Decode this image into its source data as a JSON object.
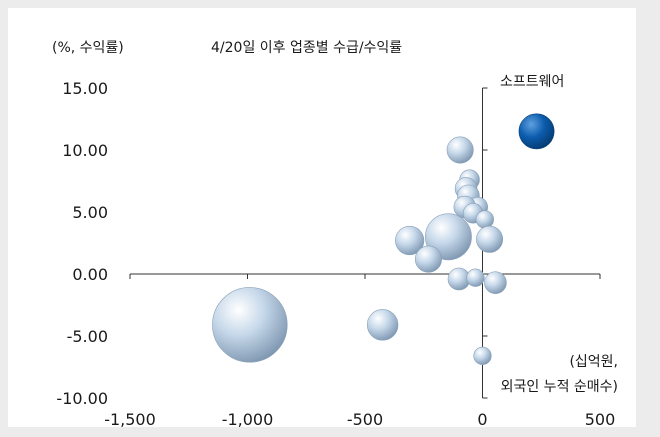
{
  "chart_data": {
    "type": "scatter",
    "title": "4/20일 이후 업종별 수급/수익률",
    "ylabel": "(%, 수익률)",
    "xlabel_line1": "(십억원,",
    "xlabel_line2": "외국인 누적 순매수)",
    "xlim": [
      -1500,
      500
    ],
    "ylim": [
      -10,
      15
    ],
    "x_ticks": [
      -1500,
      -1000,
      -500,
      0,
      500
    ],
    "x_tick_labels": [
      "-1,500",
      "-1,000",
      "-500",
      "0",
      "500"
    ],
    "y_ticks": [
      15,
      10,
      5,
      0,
      -5,
      -10
    ],
    "y_tick_labels": [
      "15.00",
      "10.00",
      "5.00",
      "0.00",
      "-5.00",
      "-10.00"
    ],
    "highlight_label": "소프트웨어",
    "colors": {
      "bubble": "#b9cde0",
      "highlight": "#0b5cad"
    },
    "points": [
      {
        "x": 230,
        "y": 11.5,
        "size": 1.6,
        "highlight": true
      },
      {
        "x": -95,
        "y": 10.0,
        "size": 1.2
      },
      {
        "x": -55,
        "y": 7.6,
        "size": 0.9
      },
      {
        "x": -70,
        "y": 6.9,
        "size": 1.0
      },
      {
        "x": -60,
        "y": 6.3,
        "size": 1.0
      },
      {
        "x": -20,
        "y": 5.4,
        "size": 0.9
      },
      {
        "x": -75,
        "y": 5.4,
        "size": 1.0
      },
      {
        "x": -40,
        "y": 4.9,
        "size": 0.9
      },
      {
        "x": 10,
        "y": 4.4,
        "size": 0.8
      },
      {
        "x": -310,
        "y": 2.7,
        "size": 1.3
      },
      {
        "x": -145,
        "y": 3.0,
        "size": 2.1
      },
      {
        "x": 30,
        "y": 2.8,
        "size": 1.2
      },
      {
        "x": -230,
        "y": 1.2,
        "size": 1.2
      },
      {
        "x": -100,
        "y": -0.4,
        "size": 1.0
      },
      {
        "x": -30,
        "y": -0.3,
        "size": 0.8
      },
      {
        "x": 55,
        "y": -0.7,
        "size": 1.0
      },
      {
        "x": -990,
        "y": -4.1,
        "size": 3.4
      },
      {
        "x": -425,
        "y": -4.1,
        "size": 1.4
      },
      {
        "x": 0,
        "y": -6.6,
        "size": 0.8
      }
    ]
  }
}
